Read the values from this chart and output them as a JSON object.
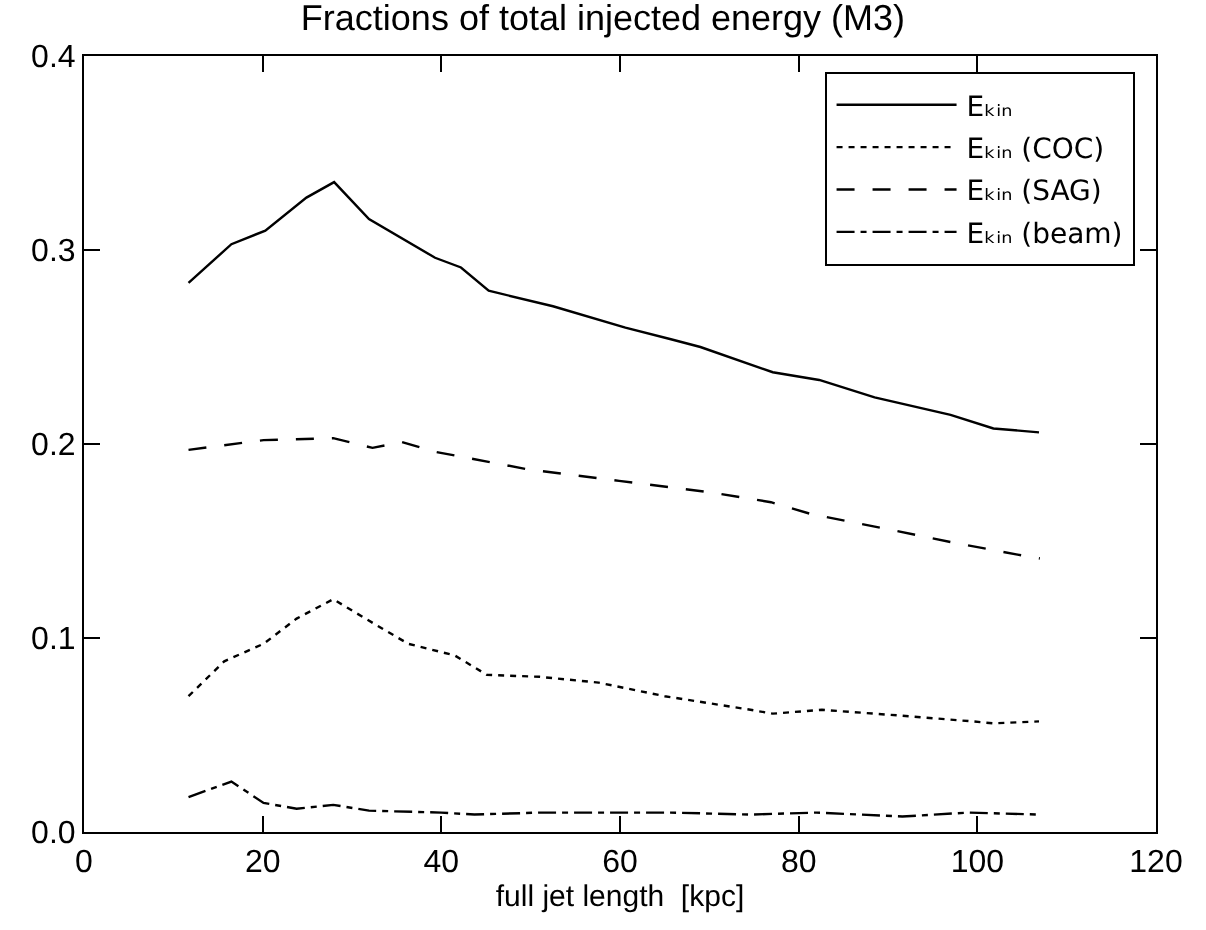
{
  "chart_data": {
    "type": "line",
    "title": "Fractions of total injected energy (M3)",
    "xlabel": "full jet length  [kpc]",
    "xlim": [
      0,
      120
    ],
    "xticks": [
      0,
      20,
      40,
      60,
      80,
      100,
      120
    ],
    "ylim": [
      0,
      0.4
    ],
    "yticks": [
      {
        "value": 0,
        "label": "0.0"
      },
      0.1,
      0.2,
      0.3,
      0.4
    ],
    "legend": "top right",
    "series": [
      {
        "name": "Eₖᵢₙ",
        "color": "#000000",
        "line_style": "solid",
        "x": [
          11.7,
          16.5,
          20.3,
          24.9,
          28,
          31.9,
          39.3,
          42.2,
          45.3,
          52.5,
          60.6,
          65.7,
          69.0,
          77.1,
          82.3,
          88.5,
          97.0,
          101.8,
          106.9
        ],
        "values": [
          0.283,
          0.303,
          0.31,
          0.327,
          0.335,
          0.316,
          0.296,
          0.291,
          0.279,
          0.271,
          0.26,
          0.254,
          0.25,
          0.237,
          0.233,
          0.224,
          0.215,
          0.208,
          0.206
        ]
      },
      {
        "name": "Eₖᵢₙ (COC)",
        "color": "#000000",
        "line_style": "dotted",
        "x": [
          11.7,
          15.7,
          20.1,
          23.8,
          27.9,
          32.6,
          36.3,
          41.5,
          45.1,
          51,
          57.6,
          65,
          74.6,
          77.1,
          82.6,
          91.4,
          99.5,
          101.8,
          106.9
        ],
        "values": [
          0.07,
          0.088,
          0.097,
          0.11,
          0.12,
          0.107,
          0.097,
          0.091,
          0.081,
          0.08,
          0.077,
          0.07,
          0.063,
          0.061,
          0.063,
          0.06,
          0.057,
          0.056,
          0.057
        ]
      },
      {
        "name": "Eₖᵢₙ (SAG)",
        "color": "#000000",
        "line_style": "dashed",
        "x": [
          11.7,
          20.1,
          27.9,
          32.3,
          35.6,
          39.3,
          49.6,
          59.9,
          70.2,
          76.9,
          81.3,
          90.1,
          97.5,
          104.5,
          107
        ],
        "values": [
          0.197,
          0.202,
          0.203,
          0.198,
          0.201,
          0.196,
          0.187,
          0.181,
          0.175,
          0.17,
          0.164,
          0.156,
          0.149,
          0.143,
          0.141
        ]
      },
      {
        "name": "Eₖᵢₙ (beam)",
        "color": "#000000",
        "line_style": "dashdot",
        "x": [
          11.7,
          16.5,
          20.1,
          23.8,
          27.9,
          31.9,
          40,
          43.7,
          51,
          65.7,
          74.6,
          82,
          91.6,
          99,
          106.9
        ],
        "values": [
          0.018,
          0.026,
          0.015,
          0.012,
          0.014,
          0.011,
          0.01,
          0.009,
          0.01,
          0.01,
          0.009,
          0.01,
          0.008,
          0.01,
          0.009
        ]
      }
    ]
  }
}
